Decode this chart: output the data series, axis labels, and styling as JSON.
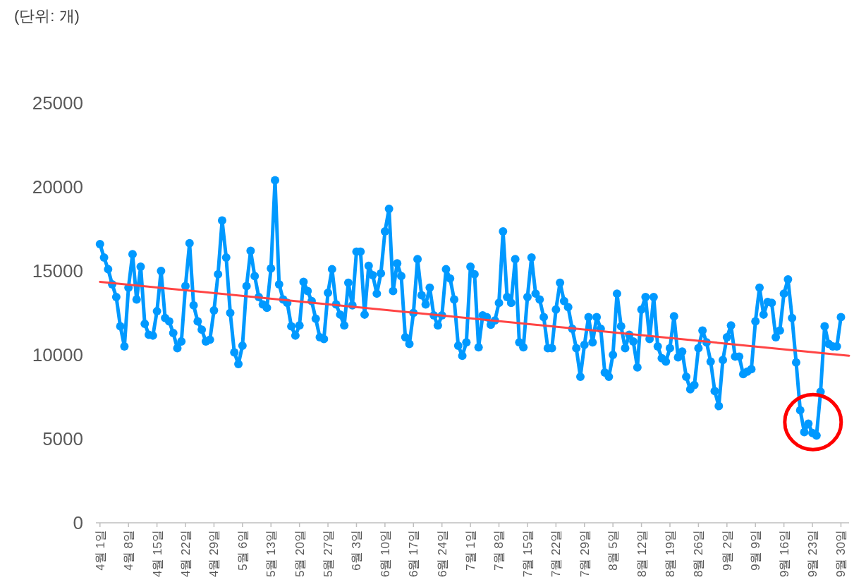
{
  "chart_data": {
    "type": "line",
    "ylabel": "(단위: 개)",
    "x": [
      "--04-01",
      "--04-02",
      "--04-03",
      "--04-04",
      "--04-05",
      "--04-06",
      "--04-07",
      "--04-08",
      "--04-09",
      "--04-10",
      "--04-11",
      "--04-12",
      "--04-13",
      "--04-14",
      "--04-15",
      "--04-16",
      "--04-17",
      "--04-18",
      "--04-19",
      "--04-20",
      "--04-21",
      "--04-22",
      "--04-23",
      "--04-24",
      "--04-25",
      "--04-26",
      "--04-27",
      "--04-28",
      "--04-29",
      "--04-30",
      "--05-01",
      "--05-02",
      "--05-03",
      "--05-04",
      "--05-05",
      "--05-06",
      "--05-07",
      "--05-08",
      "--05-09",
      "--05-10",
      "--05-11",
      "--05-12",
      "--05-13",
      "--05-14",
      "--05-15",
      "--05-16",
      "--05-17",
      "--05-18",
      "--05-19",
      "--05-20",
      "--05-21",
      "--05-22",
      "--05-23",
      "--05-24",
      "--05-25",
      "--05-26",
      "--05-27",
      "--05-28",
      "--05-29",
      "--05-30",
      "--05-31",
      "--06-01",
      "--06-02",
      "--06-03",
      "--06-04",
      "--06-05",
      "--06-06",
      "--06-07",
      "--06-08",
      "--06-09",
      "--06-10",
      "--06-11",
      "--06-12",
      "--06-13",
      "--06-14",
      "--06-15",
      "--06-16",
      "--06-17",
      "--06-18",
      "--06-19",
      "--06-20",
      "--06-21",
      "--06-22",
      "--06-23",
      "--06-24",
      "--06-25",
      "--06-26",
      "--06-27",
      "--06-28",
      "--06-29",
      "--06-30",
      "--07-01",
      "--07-02",
      "--07-03",
      "--07-04",
      "--07-05",
      "--07-06",
      "--07-07",
      "--07-08",
      "--07-09",
      "--07-10",
      "--07-11",
      "--07-12",
      "--07-13",
      "--07-14",
      "--07-15",
      "--07-16",
      "--07-17",
      "--07-18",
      "--07-19",
      "--07-20",
      "--07-21",
      "--07-22",
      "--07-23",
      "--07-24",
      "--07-25",
      "--07-26",
      "--07-27",
      "--07-28",
      "--07-29",
      "--07-30",
      "--07-31",
      "--08-01",
      "--08-02",
      "--08-03",
      "--08-04",
      "--08-05",
      "--08-06",
      "--08-07",
      "--08-08",
      "--08-09",
      "--08-10",
      "--08-11",
      "--08-12",
      "--08-13",
      "--08-14",
      "--08-15",
      "--08-16",
      "--08-17",
      "--08-18",
      "--08-19",
      "--08-20",
      "--08-21",
      "--08-22",
      "--08-23",
      "--08-24",
      "--08-25",
      "--08-26",
      "--08-27",
      "--08-28",
      "--08-29",
      "--08-30",
      "--08-31",
      "--09-01",
      "--09-02",
      "--09-03",
      "--09-04",
      "--09-05",
      "--09-06",
      "--09-07",
      "--09-08",
      "--09-09",
      "--09-10",
      "--09-11",
      "--09-12",
      "--09-13",
      "--09-14",
      "--09-15",
      "--09-16",
      "--09-17",
      "--09-18",
      "--09-19",
      "--09-20",
      "--09-21",
      "--09-22",
      "--09-23",
      "--09-24",
      "--09-25",
      "--09-26",
      "--09-27",
      "--09-28",
      "--09-29",
      "--09-30"
    ],
    "series": [
      {
        "color": "#0099ff",
        "values": [
          16600,
          15800,
          15100,
          14200,
          13450,
          11700,
          10500,
          14000,
          16000,
          13300,
          15250,
          11850,
          11200,
          11150,
          12600,
          15000,
          12200,
          12000,
          11300,
          10400,
          10800,
          14100,
          16650,
          12950,
          12000,
          11500,
          10800,
          10900,
          12650,
          14800,
          18000,
          15800,
          12500,
          10150,
          9450,
          10550,
          14100,
          16200,
          14700,
          13450,
          13000,
          12800,
          15150,
          20400,
          14200,
          13300,
          13100,
          11700,
          11150,
          11750,
          14350,
          13800,
          13200,
          12150,
          11050,
          10950,
          13700,
          15100,
          13000,
          12400,
          11750,
          14300,
          12950,
          16150,
          16150,
          12400,
          15300,
          14750,
          13650,
          14850,
          17350,
          18700,
          13800,
          15450,
          14700,
          11050,
          10650,
          12500,
          15700,
          13550,
          13000,
          14000,
          12350,
          11750,
          12350,
          15100,
          14550,
          13300,
          10550,
          9950,
          10750,
          15250,
          14800,
          10450,
          12350,
          12250,
          11800,
          12050,
          13100,
          17350,
          13450,
          13100,
          15700,
          10750,
          10450,
          13450,
          15800,
          13650,
          13300,
          12250,
          10400,
          10400,
          12700,
          14300,
          13200,
          12850,
          11550,
          10400,
          8700,
          10600,
          12250,
          10750,
          12250,
          11550,
          8950,
          8700,
          10000,
          13650,
          11700,
          10400,
          11200,
          10800,
          9250,
          12700,
          13450,
          10950,
          13450,
          10500,
          9800,
          9600,
          10400,
          12300,
          9850,
          10200,
          8700,
          7950,
          8200,
          10400,
          11450,
          10750,
          9600,
          7850,
          6950,
          9700,
          11050,
          11750,
          9900,
          9900,
          8850,
          9000,
          9150,
          12000,
          14000,
          12400,
          13150,
          13100,
          11050,
          11450,
          13650,
          14500,
          12200,
          9550,
          6700,
          5400,
          5900,
          5350,
          5200,
          7800,
          11700,
          10650,
          10500,
          10500,
          12250
        ]
      },
      {
        "type": "line",
        "color": "#ff4444",
        "marker": "none",
        "x": [
          "--04-01",
          "--10-02"
        ],
        "values": [
          14350,
          9950
        ]
      }
    ],
    "xlim": [
      "--03-31",
      "--10-02"
    ],
    "xticks": [
      {
        "value": "--04-01",
        "label": "4월 1일"
      },
      {
        "value": "--04-08",
        "label": "4월 8일"
      },
      {
        "value": "--04-15",
        "label": "4월 15일"
      },
      {
        "value": "--04-22",
        "label": "4월 22일"
      },
      {
        "value": "--04-29",
        "label": "4월 29일"
      },
      {
        "value": "--05-06",
        "label": "5월 6일"
      },
      {
        "value": "--05-13",
        "label": "5월 13일"
      },
      {
        "value": "--05-20",
        "label": "5월 20일"
      },
      {
        "value": "--05-27",
        "label": "5월 27일"
      },
      {
        "value": "--06-03",
        "label": "6월 3일"
      },
      {
        "value": "--06-10",
        "label": "6월 10일"
      },
      {
        "value": "--06-17",
        "label": "6월 17일"
      },
      {
        "value": "--06-24",
        "label": "6월 24일"
      },
      {
        "value": "--07-01",
        "label": "7월 1일"
      },
      {
        "value": "--07-08",
        "label": "7월 8일"
      },
      {
        "value": "--07-15",
        "label": "7월 15일"
      },
      {
        "value": "--07-22",
        "label": "7월 22일"
      },
      {
        "value": "--07-29",
        "label": "7월 29일"
      },
      {
        "value": "--08-05",
        "label": "8월 5일"
      },
      {
        "value": "--08-12",
        "label": "8월 12일"
      },
      {
        "value": "--08-19",
        "label": "8월 19일"
      },
      {
        "value": "--08-26",
        "label": "8월 26일"
      },
      {
        "value": "--09-02",
        "label": "9월 2일"
      },
      {
        "value": "--09-09",
        "label": "9월 9일"
      },
      {
        "value": "--09-16",
        "label": "9월 16일"
      },
      {
        "value": "--09-23",
        "label": "9월 23일"
      },
      {
        "value": "--09-30",
        "label": "9월 30일"
      }
    ],
    "ylim": [
      0,
      25000
    ],
    "yticks": [
      0,
      5000,
      10000,
      15000,
      20000,
      25000
    ],
    "grid": false,
    "marker": "circle",
    "line_style": "solid"
  }
}
